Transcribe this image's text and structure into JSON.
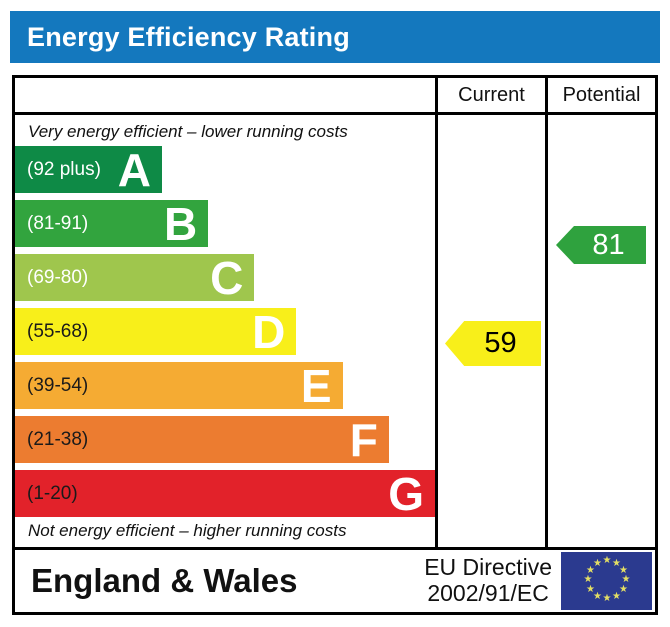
{
  "title_bar": {
    "label": "Energy Efficiency Rating",
    "bg": "#1478be",
    "text_color": "#ffffff"
  },
  "table": {
    "columns": {
      "current": "Current",
      "potential": "Potential"
    },
    "top_note": "Very energy efficient – lower running costs",
    "bottom_note": "Not energy efficient – higher running costs"
  },
  "chart_data": {
    "type": "bar",
    "title": "Energy Efficiency Rating",
    "bands": [
      {
        "letter": "A",
        "range": "(92 plus)",
        "min": 92,
        "max": 100,
        "color": "#0e8a46",
        "label_color": "#ffffff",
        "width_pct": 35
      },
      {
        "letter": "B",
        "range": "(81-91)",
        "min": 81,
        "max": 91,
        "color": "#32a43e",
        "label_color": "#ffffff",
        "width_pct": 46
      },
      {
        "letter": "C",
        "range": "(69-80)",
        "min": 69,
        "max": 80,
        "color": "#9fc64d",
        "label_color": "#ffffff",
        "width_pct": 57
      },
      {
        "letter": "D",
        "range": "(55-68)",
        "min": 55,
        "max": 68,
        "color": "#f8ef1a",
        "label_color": "#1a1a1a",
        "width_pct": 67
      },
      {
        "letter": "E",
        "range": "(39-54)",
        "min": 39,
        "max": 54,
        "color": "#f5ab33",
        "label_color": "#1a1a1a",
        "width_pct": 78
      },
      {
        "letter": "F",
        "range": "(21-38)",
        "min": 21,
        "max": 38,
        "color": "#ec7c30",
        "label_color": "#1a1a1a",
        "width_pct": 89
      },
      {
        "letter": "G",
        "range": "(1-20)",
        "min": 1,
        "max": 20,
        "color": "#e2222a",
        "label_color": "#1a1a1a",
        "width_pct": 100
      }
    ],
    "current": {
      "value": "59",
      "band": "D",
      "color": "#f8ef1a",
      "text_color": "#000000"
    },
    "potential": {
      "value": "81",
      "band": "B",
      "color": "#2fa23e",
      "text_color": "#ffffff"
    }
  },
  "footer": {
    "region": "England & Wales",
    "directive_line1": "EU Directive",
    "directive_line2": "2002/91/EC",
    "eu_flag": {
      "name": "eu-flag",
      "bg": "#2b3a8f",
      "star_color": "#e3de64",
      "star_count": 12,
      "star_glyph": "★"
    }
  }
}
